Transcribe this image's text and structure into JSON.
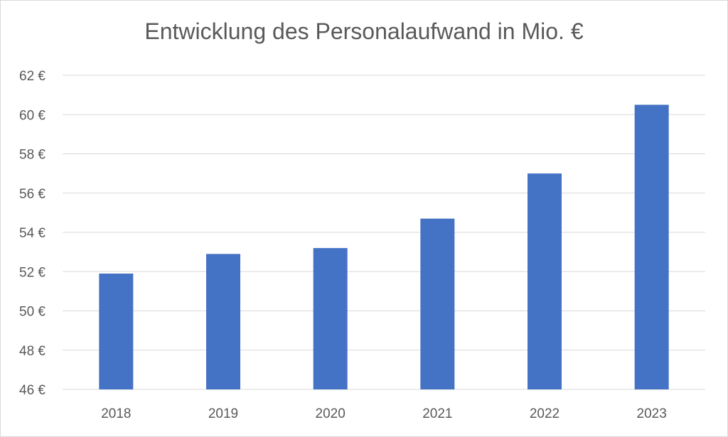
{
  "chart_data": {
    "type": "bar",
    "title": "Entwicklung des Personalaufwand in Mio. €",
    "xlabel": "",
    "ylabel": "",
    "categories": [
      "2018",
      "2019",
      "2020",
      "2021",
      "2022",
      "2023"
    ],
    "values": [
      51.9,
      52.9,
      53.2,
      54.7,
      57.0,
      60.5
    ],
    "ylim": [
      46,
      62
    ],
    "yticks": [
      46,
      48,
      50,
      52,
      54,
      56,
      58,
      60,
      62
    ],
    "ytick_labels": [
      "46 €",
      "48 €",
      "50 €",
      "52 €",
      "54 €",
      "56 €",
      "58 €",
      "60 €",
      "62 €"
    ],
    "grid": true,
    "legend": "none",
    "bar_color": "#4472c4"
  }
}
